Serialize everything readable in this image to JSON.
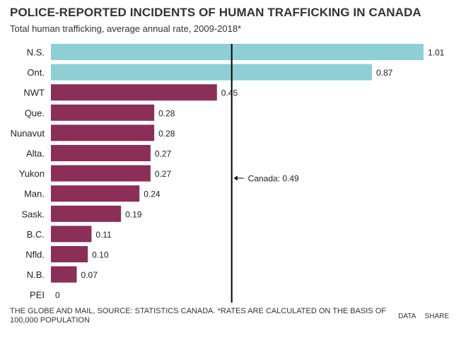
{
  "header": {
    "title": "POLICE-REPORTED INCIDENTS OF HUMAN TRAFFICKING IN CANADA",
    "subtitle": "Total human trafficking, average annual rate, 2009-2018*"
  },
  "footer": {
    "source": "THE GLOBE AND MAIL, SOURCE: STATISTICS CANADA. *RATES ARE CALCULATED ON THE BASIS OF 100,000 POPULATION",
    "data_link": "DATA",
    "share_link": "SHARE"
  },
  "chart_data": {
    "type": "bar",
    "orientation": "horizontal",
    "title": "POLICE-REPORTED INCIDENTS OF HUMAN TRAFFICKING IN CANADA",
    "subtitle": "Total human trafficking, average annual rate, 2009-2018*",
    "categories": [
      "N.S.",
      "Ont.",
      "NWT",
      "Que.",
      "Nunavut",
      "Alta.",
      "Yukon",
      "Man.",
      "Sask.",
      "B.C.",
      "Nfld.",
      "N.B.",
      "PEI"
    ],
    "values": [
      1.01,
      0.87,
      0.45,
      0.28,
      0.28,
      0.27,
      0.27,
      0.24,
      0.19,
      0.11,
      0.1,
      0.07,
      0
    ],
    "value_labels": [
      "1.01",
      "0.87",
      "0.45",
      "0.28",
      "0.28",
      "0.27",
      "0.27",
      "0.24",
      "0.19",
      "0.11",
      "0.10",
      "0.07",
      "0"
    ],
    "highlight_categories": [
      "N.S.",
      "Ont."
    ],
    "reference_line": {
      "value": 0.49,
      "label": "Canada: 0.49"
    },
    "colors": {
      "highlight": "#8ecfd6",
      "default": "#8b2e58",
      "reference": "#000000"
    },
    "xlim": [
      0,
      1.01
    ],
    "grid": false,
    "xlabel": "",
    "ylabel": ""
  }
}
